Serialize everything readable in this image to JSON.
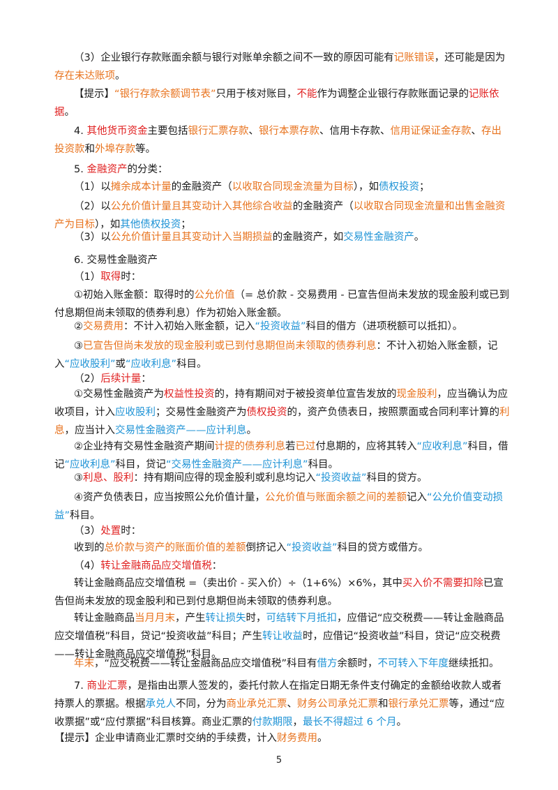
{
  "colors": {
    "orange": "#e8731e",
    "red": "#e02020",
    "blue": "#1f93d6",
    "text": "#1a1a1a"
  },
  "page_number": "5",
  "paragraphs": [
    {
      "segments": [
        {
          "t": "（3）企业银行存款账面余额与银行对账单余额之间不一致的原因可能有"
        },
        {
          "t": "记账错误",
          "c": "o"
        },
        {
          "t": "，还可能是因为"
        },
        {
          "t": "存在未达账项",
          "c": "o"
        },
        {
          "t": "。"
        }
      ]
    },
    {
      "segments": [
        {
          "t": "【提示】"
        },
        {
          "t": "“银行存款余额调节表”",
          "c": "o"
        },
        {
          "t": "只用于核对账目，"
        },
        {
          "t": "不能",
          "c": "r"
        },
        {
          "t": "作为调整企业银行存款账面记录的"
        },
        {
          "t": "记账依据",
          "c": "r"
        },
        {
          "t": "。"
        }
      ]
    },
    {
      "segments": [
        {
          "t": "4. "
        },
        {
          "t": "其他货币资金",
          "c": "r"
        },
        {
          "t": "主要包括"
        },
        {
          "t": "银行汇票存款",
          "c": "o"
        },
        {
          "t": "、"
        },
        {
          "t": "银行本票存款",
          "c": "o"
        },
        {
          "t": "、信用卡存款、"
        },
        {
          "t": "信用证保证金存款",
          "c": "o"
        },
        {
          "t": "、"
        },
        {
          "t": "存出投资款",
          "c": "o"
        },
        {
          "t": "和"
        },
        {
          "t": "外埠存款",
          "c": "o"
        },
        {
          "t": "等。"
        }
      ]
    },
    {
      "segments": [
        {
          "t": "5. "
        },
        {
          "t": "金融资产",
          "c": "r"
        },
        {
          "t": "的分类："
        }
      ]
    },
    {
      "segments": [
        {
          "t": "（1）以"
        },
        {
          "t": "摊余成本计量",
          "c": "o"
        },
        {
          "t": "的金融资产（"
        },
        {
          "t": "以收取合同现金流量为目标",
          "c": "o"
        },
        {
          "t": "），如"
        },
        {
          "t": "债权投资",
          "c": "b"
        },
        {
          "t": "；"
        }
      ]
    },
    {
      "segments": [
        {
          "t": "（2）以"
        },
        {
          "t": "公允价值计量且其变动计入其他综合收益",
          "c": "o"
        },
        {
          "t": "的金融资产（"
        },
        {
          "t": "以收取合同现金流量和出售金融资产为目标",
          "c": "o"
        },
        {
          "t": "），如"
        },
        {
          "t": "其他债权投资",
          "c": "b"
        },
        {
          "t": "；"
        }
      ]
    },
    {
      "segments": [
        {
          "t": "（3）以"
        },
        {
          "t": "公允价值计量且其变动计入当期损益",
          "c": "o"
        },
        {
          "t": "的金融资产，如"
        },
        {
          "t": "交易性金融资产",
          "c": "b"
        },
        {
          "t": "。"
        }
      ]
    },
    {
      "segments": [
        {
          "t": "6. 交易性金融资产"
        }
      ]
    },
    {
      "segments": [
        {
          "t": "（1）"
        },
        {
          "t": "取得",
          "c": "r"
        },
        {
          "t": "时："
        }
      ]
    },
    {
      "segments": [
        {
          "t": "①初始入账金额：取得时的"
        },
        {
          "t": "公允价值",
          "c": "o"
        },
        {
          "t": "（= 总价款 - 交易费用 - 已宣告但尚未发放的现金股利或已到付息期但尚未领取的债券利息）作为初始入账金额。"
        }
      ]
    },
    {
      "segments": [
        {
          "t": "②"
        },
        {
          "t": "交易费用",
          "c": "o"
        },
        {
          "t": "：不计入初始入账金额，记入"
        },
        {
          "t": "“投资收益”",
          "c": "b"
        },
        {
          "t": "科目的借方（进项税额可以抵扣）。"
        }
      ]
    },
    {
      "segments": [
        {
          "t": "③"
        },
        {
          "t": "已宣告但尚未发放的现金股利或已到付息期但尚未领取的债券利息",
          "c": "o"
        },
        {
          "t": "：不计入初始入账金额，记入"
        },
        {
          "t": "“应收股利”",
          "c": "b"
        },
        {
          "t": "或"
        },
        {
          "t": "“应收利息”",
          "c": "b"
        },
        {
          "t": "科目。"
        }
      ]
    },
    {
      "segments": [
        {
          "t": "（2）"
        },
        {
          "t": "后续计量",
          "c": "r"
        },
        {
          "t": "："
        }
      ]
    },
    {
      "segments": [
        {
          "t": "①交易性金融资产为"
        },
        {
          "t": "权益性投资",
          "c": "r"
        },
        {
          "t": "的，持有期间对于被投资单位宣告发放的"
        },
        {
          "t": "现金股利",
          "c": "o"
        },
        {
          "t": "，应当确认为应收项目，计入"
        },
        {
          "t": "应收股利",
          "c": "b"
        },
        {
          "t": "；交易性金融资产为"
        },
        {
          "t": "债权投资",
          "c": "r"
        },
        {
          "t": "的，资产负债表日，按照票面或合同利率计算的"
        },
        {
          "t": "利息",
          "c": "o"
        },
        {
          "t": "，应当计入"
        },
        {
          "t": "交易性金融资产——应计利息",
          "c": "b"
        },
        {
          "t": "。"
        }
      ]
    },
    {
      "segments": [
        {
          "t": "②企业持有交易性金融资产期间"
        },
        {
          "t": "计提的债券利息",
          "c": "o"
        },
        {
          "t": "若"
        },
        {
          "t": "已过",
          "c": "o"
        },
        {
          "t": "付息期的，应将其转入"
        },
        {
          "t": "“应收利息”",
          "c": "b"
        },
        {
          "t": "科目，借记"
        },
        {
          "t": "“应收利息”",
          "c": "b"
        },
        {
          "t": "科目，贷记"
        },
        {
          "t": "“交易性金融资产——应计利息”",
          "c": "b"
        },
        {
          "t": "科目。"
        }
      ]
    },
    {
      "segments": [
        {
          "t": "③"
        },
        {
          "t": "利息、股利",
          "c": "r"
        },
        {
          "t": "：持有期间应得的现金股利或利息均记入"
        },
        {
          "t": "“投资收益”",
          "c": "b"
        },
        {
          "t": "科目的贷方。"
        }
      ]
    },
    {
      "segments": [
        {
          "t": "④资产负债表日，应当按照公允价值计量，"
        },
        {
          "t": "公允价值与账面余额之间的差额",
          "c": "o"
        },
        {
          "t": "记入"
        },
        {
          "t": "“公允价值变动损益”",
          "c": "b"
        },
        {
          "t": "科目。"
        }
      ]
    },
    {
      "segments": [
        {
          "t": "（3）"
        },
        {
          "t": "处置",
          "c": "r"
        },
        {
          "t": "时："
        }
      ]
    },
    {
      "segments": [
        {
          "t": "收到的"
        },
        {
          "t": "总价款与资产的账面价值的差额",
          "c": "o"
        },
        {
          "t": "倒挤记入"
        },
        {
          "t": "“投资收益”",
          "c": "b"
        },
        {
          "t": "科目的贷方或借方。"
        }
      ]
    },
    {
      "segments": [
        {
          "t": "（4）"
        },
        {
          "t": "转让金融商品应交增值税",
          "c": "r"
        },
        {
          "t": "："
        }
      ]
    },
    {
      "segments": [
        {
          "t": "转让金融商品应交增值税 =（卖出价 - 买入价）÷（1+6%）×6%，其中"
        },
        {
          "t": "买入价不需要扣除",
          "c": "r"
        },
        {
          "t": "已宣告但尚未发放的现金股利和已到付息期但尚未领取的债券利息。"
        }
      ]
    },
    {
      "segments": [
        {
          "t": "转让金融商品"
        },
        {
          "t": "当月月末",
          "c": "o"
        },
        {
          "t": "，产生"
        },
        {
          "t": "转让损失",
          "c": "b"
        },
        {
          "t": "时，"
        },
        {
          "t": "可结转下月抵扣",
          "c": "b"
        },
        {
          "t": "，应借记“应交税费——转让金融商品应交增值税”科目，贷记“投资收益”科目；产生"
        },
        {
          "t": "转让收益",
          "c": "b"
        },
        {
          "t": "时，应借记“投资收益”科目，贷记“应交税费——转让金融商品应交增值税”科目。"
        }
      ]
    },
    {
      "segments": [
        {
          "t": "年末",
          "c": "o"
        },
        {
          "t": "，“应交税费——转让金融商品应交增值税”科目有"
        },
        {
          "t": "借方",
          "c": "b"
        },
        {
          "t": "余额时，"
        },
        {
          "t": "不可转入下年度",
          "c": "b"
        },
        {
          "t": "继续抵扣。"
        }
      ]
    },
    {
      "segments": [
        {
          "t": "7. "
        },
        {
          "t": "商业汇票",
          "c": "r"
        },
        {
          "t": "，是指由出票人签发的，委托付款人在指定日期无条件支付确定的金额给收款人或者持票人的票据。根据"
        },
        {
          "t": "承兑人",
          "c": "b"
        },
        {
          "t": "不同，分为"
        },
        {
          "t": "商业承兑汇票",
          "c": "o"
        },
        {
          "t": "、"
        },
        {
          "t": "财务公司承兑汇票",
          "c": "o"
        },
        {
          "t": "和"
        },
        {
          "t": "银行承兑汇票",
          "c": "o"
        },
        {
          "t": "等，通过“应收票据”或“应付票据”科目核算。商业汇票的"
        },
        {
          "t": "付款期限",
          "c": "b"
        },
        {
          "t": "，"
        },
        {
          "t": "最长不得超过 6 个月",
          "c": "b"
        },
        {
          "t": "。"
        }
      ]
    },
    {
      "segments": [
        {
          "t": "【提示】企业申请商业汇票时交纳的手续费，计入"
        },
        {
          "t": "财务费用",
          "c": "o"
        },
        {
          "t": "。"
        }
      ]
    }
  ]
}
